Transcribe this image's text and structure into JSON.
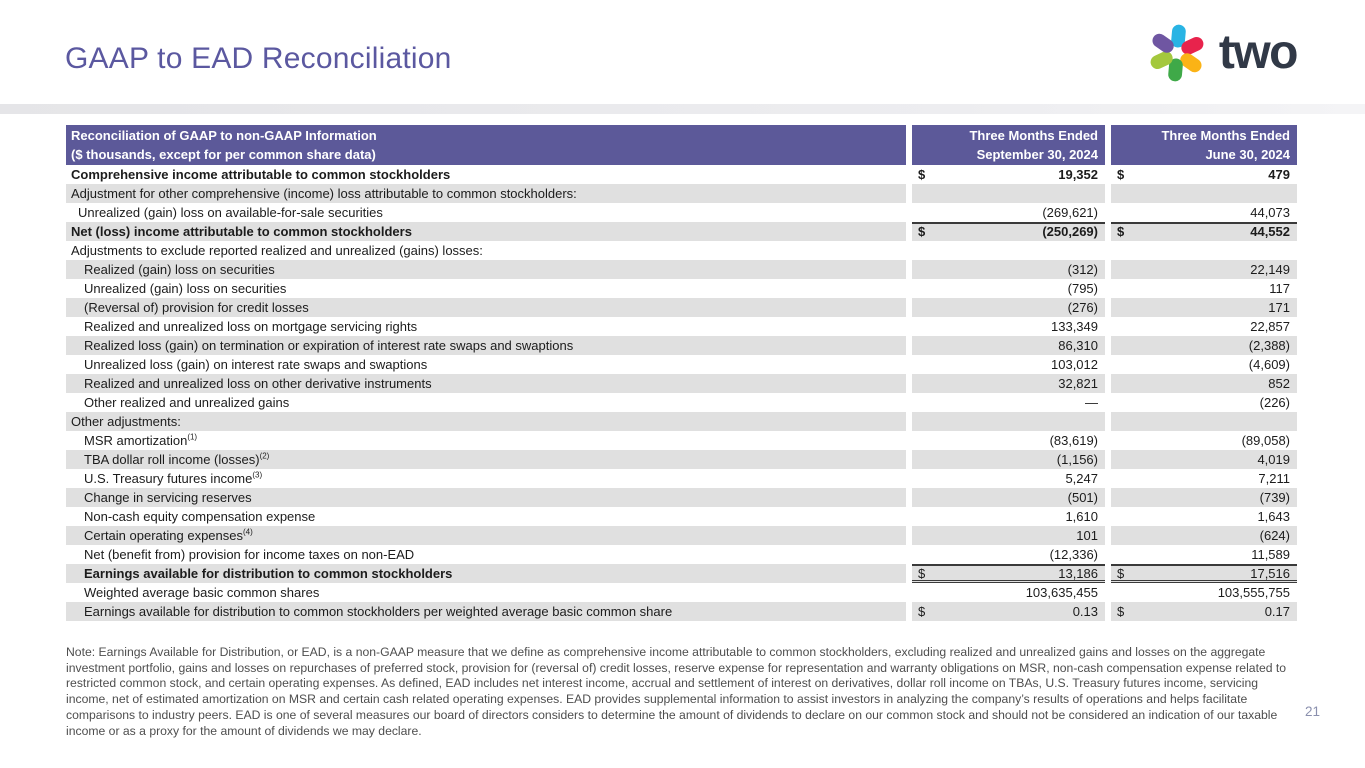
{
  "header": {
    "title": "GAAP to EAD Reconciliation",
    "logo_text": "two"
  },
  "logo": {
    "petal_colors": [
      "#29b4e4",
      "#e8234c",
      "#fbb316",
      "#3fa948",
      "#a4c83d",
      "#6f56a2"
    ],
    "wordmark_color": "#313947"
  },
  "colors": {
    "header_purple": "#5c5999",
    "title_purple": "#5b58a0",
    "row_shade": "#e0e0e0",
    "border_dark": "#3a3a3a"
  },
  "table": {
    "header": {
      "label_line1": "Reconciliation of GAAP to non-GAAP Information",
      "label_line2": "($ thousands, except for per common share data)",
      "col1_line1": "Three Months Ended",
      "col1_line2": "September 30, 2024",
      "col2_line1": "Three Months Ended",
      "col2_line2": "June 30, 2024"
    },
    "rows": [
      {
        "label": "Comprehensive income attributable to common stockholders",
        "indent": 0,
        "bold": true,
        "bold_values": true,
        "shaded": false,
        "dollar": true,
        "v1": "19,352",
        "v2": "479"
      },
      {
        "label": "Adjustment for other comprehensive (income) loss attributable to common stockholders:",
        "indent": 0,
        "shaded": true,
        "v1": "",
        "v2": ""
      },
      {
        "label": "Unrealized (gain) loss on available-for-sale securities",
        "indent": 1,
        "shaded": false,
        "v1": "(269,621)",
        "v2": "44,073"
      },
      {
        "label": "Net (loss) income attributable to common stockholders",
        "indent": 0,
        "bold": true,
        "bold_values": true,
        "shaded": true,
        "dollar": true,
        "border_top": true,
        "v1": "(250,269)",
        "v2": "44,552"
      },
      {
        "label": "Adjustments to exclude reported realized and unrealized (gains) losses:",
        "indent": 0,
        "shaded": false,
        "v1": "",
        "v2": ""
      },
      {
        "label": "Realized (gain) loss on securities",
        "indent": 2,
        "shaded": true,
        "v1": "(312)",
        "v2": "22,149"
      },
      {
        "label": "Unrealized (gain) loss on securities",
        "indent": 2,
        "shaded": false,
        "v1": "(795)",
        "v2": "117"
      },
      {
        "label": "(Reversal of) provision for credit losses",
        "indent": 2,
        "shaded": true,
        "v1": "(276)",
        "v2": "171"
      },
      {
        "label": "Realized and unrealized loss on mortgage servicing rights",
        "indent": 2,
        "shaded": false,
        "v1": "133,349",
        "v2": "22,857"
      },
      {
        "label": "Realized loss (gain) on termination or expiration of interest rate swaps and swaptions",
        "indent": 2,
        "shaded": true,
        "v1": "86,310",
        "v2": "(2,388)"
      },
      {
        "label": "Unrealized loss (gain) on interest rate swaps and swaptions",
        "indent": 2,
        "shaded": false,
        "v1": "103,012",
        "v2": "(4,609)"
      },
      {
        "label": "Realized and unrealized loss on other derivative instruments",
        "indent": 2,
        "shaded": true,
        "v1": "32,821",
        "v2": "852"
      },
      {
        "label": "Other realized and unrealized gains",
        "indent": 2,
        "shaded": false,
        "v1": "—",
        "v2": "(226)"
      },
      {
        "label": "Other adjustments:",
        "indent": 0,
        "shaded": true,
        "v1": "",
        "v2": ""
      },
      {
        "label": "MSR amortization",
        "sup": "(1)",
        "indent": 2,
        "shaded": false,
        "v1": "(83,619)",
        "v2": "(89,058)"
      },
      {
        "label": "TBA dollar roll income (losses)",
        "sup": "(2)",
        "indent": 2,
        "shaded": true,
        "v1": "(1,156)",
        "v2": "4,019"
      },
      {
        "label": "U.S. Treasury futures income",
        "sup": "(3)",
        "indent": 2,
        "shaded": false,
        "v1": "5,247",
        "v2": "7,211"
      },
      {
        "label": "Change in servicing reserves",
        "indent": 2,
        "shaded": true,
        "v1": "(501)",
        "v2": "(739)"
      },
      {
        "label": "Non-cash equity compensation expense",
        "indent": 2,
        "shaded": false,
        "v1": "1,610",
        "v2": "1,643"
      },
      {
        "label": "Certain operating expenses",
        "sup": "(4)",
        "indent": 2,
        "shaded": true,
        "v1": "101",
        "v2": "(624)"
      },
      {
        "label": "Net (benefit from) provision for income taxes on non-EAD",
        "indent": 2,
        "shaded": false,
        "v1": "(12,336)",
        "v2": "11,589"
      },
      {
        "label": "Earnings available for distribution to common stockholders",
        "indent": 2,
        "bold": true,
        "shaded": true,
        "dollar": true,
        "border_top": true,
        "border_double_bottom": true,
        "v1": "13,186",
        "v2": "17,516"
      },
      {
        "label": "Weighted average basic common shares",
        "indent": 2,
        "shaded": false,
        "v1": "103,635,455",
        "v2": "103,555,755"
      },
      {
        "label": "Earnings available for distribution to common stockholders per weighted average basic common share",
        "indent": 2,
        "shaded": true,
        "dollar": true,
        "v1": "0.13",
        "v2": "0.17"
      }
    ]
  },
  "footnote": {
    "text": "Note: Earnings Available for Distribution, or EAD, is a non-GAAP measure that we define as comprehensive income attributable to common stockholders, excluding realized and unrealized gains and losses on the aggregate investment portfolio, gains and losses on repurchases of preferred stock, provision for (reversal of) credit losses, reserve expense for representation and warranty obligations on MSR, non-cash compensation expense related to restricted common stock, and certain operating expenses. As defined, EAD includes net interest income, accrual and settlement of interest on derivatives, dollar roll income on TBAs, U.S. Treasury futures income, servicing income, net of estimated amortization on MSR and certain cash related operating expenses. EAD provides supplemental information to assist investors in analyzing the company’s results of operations and helps facilitate comparisons to industry peers. EAD is one of several measures our board of directors considers to determine the amount of dividends to declare on our common stock and should not be considered an indication of our taxable income or as a proxy for the amount of dividends we may declare."
  },
  "page_number": "21"
}
